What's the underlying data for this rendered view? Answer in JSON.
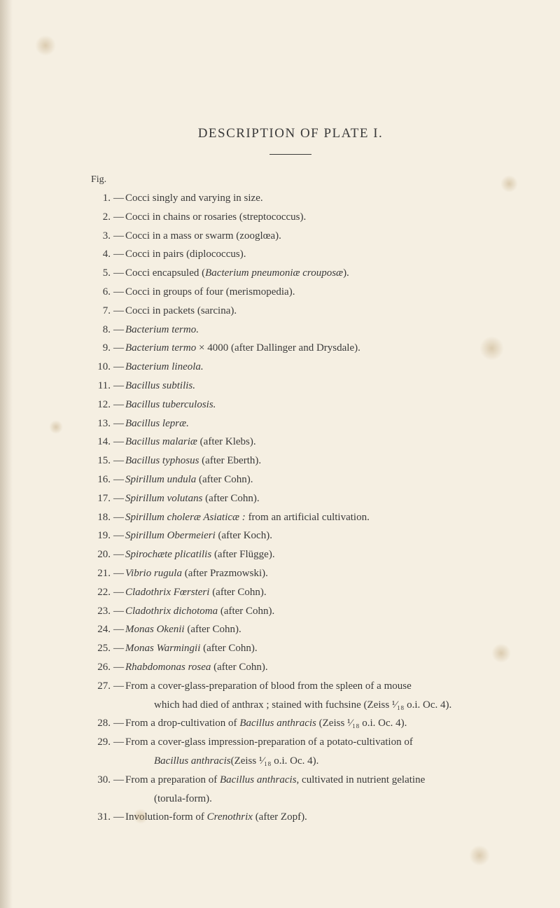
{
  "title": "DESCRIPTION OF PLATE I.",
  "fig_label": "Fig.",
  "entries": [
    {
      "num": "1.",
      "text": "Cocci singly and varying in size."
    },
    {
      "num": "2.",
      "text": "Cocci in chains or rosaries (streptococcus)."
    },
    {
      "num": "3.",
      "text": "Cocci in a mass or swarm (zooglœa)."
    },
    {
      "num": "4.",
      "text": "Cocci in pairs (diplococcus)."
    },
    {
      "num": "5.",
      "text": "Cocci encapsuled (<em>Bacterium pneumoniæ crouposæ</em>)."
    },
    {
      "num": "6.",
      "text": "Cocci in groups of four (merismopedia)."
    },
    {
      "num": "7.",
      "text": "Cocci in packets (sarcina)."
    },
    {
      "num": "8.",
      "text": "<em>Bacterium termo.</em>"
    },
    {
      "num": "9.",
      "text": "<em>Bacterium termo</em> × 4000 (after Dallinger and Drysdale)."
    },
    {
      "num": "10.",
      "text": "<em>Bacterium lineola.</em>"
    },
    {
      "num": "11.",
      "text": "<em>Bacillus subtilis.</em>"
    },
    {
      "num": "12.",
      "text": "<em>Bacillus tuberculosis.</em>"
    },
    {
      "num": "13.",
      "text": "<em>Bacillus lepræ.</em>"
    },
    {
      "num": "14.",
      "text": "<em>Bacillus malariæ</em> (after Klebs)."
    },
    {
      "num": "15.",
      "text": "<em>Bacillus typhosus</em> (after Eberth)."
    },
    {
      "num": "16.",
      "text": "<em>Spirillum undula</em> (after Cohn)."
    },
    {
      "num": "17.",
      "text": "<em>Spirillum volutans</em> (after Cohn)."
    },
    {
      "num": "18.",
      "text": "<em>Spirillum choleræ Asiaticæ :</em> from an artificial cultivation."
    },
    {
      "num": "19.",
      "text": "<em>Spirillum Obermeieri</em> (after Koch)."
    },
    {
      "num": "20.",
      "text": "<em>Spirochæte plicatilis</em> (after Flügge)."
    },
    {
      "num": "21.",
      "text": "<em>Vibrio rugula</em> (after Prazmowski)."
    },
    {
      "num": "22.",
      "text": "<em>Cladothrix Fœrsteri</em> (after Cohn)."
    },
    {
      "num": "23.",
      "text": "<em>Cladothrix dichotoma</em> (after Cohn)."
    },
    {
      "num": "24.",
      "text": "<em>Monas Okenii</em> (after Cohn)."
    },
    {
      "num": "25.",
      "text": "<em>Monas Warmingii</em> (after Cohn)."
    },
    {
      "num": "26.",
      "text": "<em>Rhabdomonas rosea</em> (after Cohn)."
    },
    {
      "num": "27.",
      "text": "From a cover-glass-preparation of blood from the spleen of a mouse",
      "continuation": "which had died of anthrax ; stained with fuchsine (Zeiss ¹⁄₁₈ o.i. Oc. 4)."
    },
    {
      "num": "28.",
      "text": "From a drop-cultivation of <em>Bacillus anthracis</em> (Zeiss ¹⁄₁₈ o.i. Oc. 4)."
    },
    {
      "num": "29.",
      "text": "From a cover-glass impression-preparation of a potato-cultivation of",
      "continuation": "<em>Bacillus anthracis</em> (Zeiss ¹⁄₁₈ o.i. Oc. 4)."
    },
    {
      "num": "30.",
      "text": "From a preparation of <em>Bacillus anthracis</em>, cultivated in nutrient gelatine",
      "continuation": "(torula-form)."
    },
    {
      "num": "31.",
      "text": "Involution-form of <em>Crenothrix</em> (after Zopf)."
    }
  ]
}
